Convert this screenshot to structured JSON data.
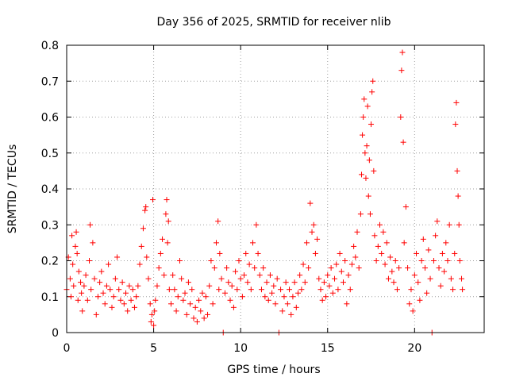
{
  "chart_data": {
    "type": "scatter",
    "title": "Day 356 of 2025, SRMTID for receiver nlib",
    "xlabel": "GPS time / hours",
    "ylabel": "SRMTID / TECUs",
    "xlim": [
      0,
      24
    ],
    "ylim": [
      0,
      0.8
    ],
    "xticks": [
      0,
      5,
      10,
      15,
      20
    ],
    "xtick_labels": [
      "0",
      "5",
      "10",
      "15",
      "20"
    ],
    "yticks": [
      0,
      0.1,
      0.2,
      0.3,
      0.4,
      0.5,
      0.6,
      0.7,
      0.8
    ],
    "ytick_labels": [
      "0",
      "0.1",
      "0.2",
      "0.3",
      "0.4",
      "0.5",
      "0.6",
      "0.7",
      "0.8"
    ],
    "grid": true,
    "legend": "none",
    "marker": "+",
    "color": "#ff0000",
    "series": [
      {
        "name": "SRMTID",
        "points": [
          [
            0.0,
            0.12
          ],
          [
            0.1,
            0.21
          ],
          [
            0.2,
            0.15
          ],
          [
            0.25,
            0.1
          ],
          [
            0.3,
            0.27
          ],
          [
            0.35,
            0.19
          ],
          [
            0.4,
            0.13
          ],
          [
            0.5,
            0.24
          ],
          [
            0.55,
            0.28
          ],
          [
            0.6,
            0.22
          ],
          [
            0.65,
            0.09
          ],
          [
            0.7,
            0.17
          ],
          [
            0.8,
            0.14
          ],
          [
            0.85,
            0.11
          ],
          [
            0.9,
            0.06
          ],
          [
            1.0,
            0.13
          ],
          [
            1.1,
            0.16
          ],
          [
            1.2,
            0.09
          ],
          [
            1.3,
            0.2
          ],
          [
            1.35,
            0.3
          ],
          [
            1.4,
            0.12
          ],
          [
            1.5,
            0.25
          ],
          [
            1.6,
            0.15
          ],
          [
            1.7,
            0.05
          ],
          [
            1.8,
            0.1
          ],
          [
            1.9,
            0.14
          ],
          [
            2.0,
            0.17
          ],
          [
            2.1,
            0.11
          ],
          [
            2.2,
            0.08
          ],
          [
            2.3,
            0.13
          ],
          [
            2.4,
            0.19
          ],
          [
            2.5,
            0.12
          ],
          [
            2.6,
            0.07
          ],
          [
            2.7,
            0.1
          ],
          [
            2.8,
            0.15
          ],
          [
            2.9,
            0.21
          ],
          [
            3.0,
            0.12
          ],
          [
            3.1,
            0.09
          ],
          [
            3.2,
            0.14
          ],
          [
            3.3,
            0.08
          ],
          [
            3.4,
            0.11
          ],
          [
            3.5,
            0.06
          ],
          [
            3.6,
            0.13
          ],
          [
            3.7,
            0.09
          ],
          [
            3.8,
            0.12
          ],
          [
            3.9,
            0.07
          ],
          [
            4.0,
            0.1
          ],
          [
            4.1,
            0.13
          ],
          [
            4.2,
            0.19
          ],
          [
            4.3,
            0.24
          ],
          [
            4.4,
            0.29
          ],
          [
            4.5,
            0.34
          ],
          [
            4.55,
            0.35
          ],
          [
            4.6,
            0.21
          ],
          [
            4.7,
            0.15
          ],
          [
            4.8,
            0.08
          ],
          [
            4.85,
            0.03
          ],
          [
            4.9,
            0.05
          ],
          [
            4.95,
            0.37
          ],
          [
            5.0,
            0.02
          ],
          [
            5.05,
            0.06
          ],
          [
            5.1,
            0.09
          ],
          [
            5.2,
            0.13
          ],
          [
            5.3,
            0.18
          ],
          [
            5.4,
            0.22
          ],
          [
            5.5,
            0.26
          ],
          [
            5.6,
            0.16
          ],
          [
            5.7,
            0.33
          ],
          [
            5.75,
            0.37
          ],
          [
            5.8,
            0.25
          ],
          [
            5.85,
            0.31
          ],
          [
            5.9,
            0.12
          ],
          [
            6.0,
            0.08
          ],
          [
            6.1,
            0.16
          ],
          [
            6.2,
            0.12
          ],
          [
            6.3,
            0.06
          ],
          [
            6.4,
            0.1
          ],
          [
            6.5,
            0.2
          ],
          [
            6.6,
            0.15
          ],
          [
            6.7,
            0.09
          ],
          [
            6.8,
            0.11
          ],
          [
            6.9,
            0.05
          ],
          [
            7.0,
            0.14
          ],
          [
            7.1,
            0.08
          ],
          [
            7.2,
            0.12
          ],
          [
            7.3,
            0.04
          ],
          [
            7.4,
            0.07
          ],
          [
            7.5,
            0.03
          ],
          [
            7.6,
            0.09
          ],
          [
            7.7,
            0.06
          ],
          [
            7.8,
            0.11
          ],
          [
            7.9,
            0.04
          ],
          [
            8.0,
            0.1
          ],
          [
            8.1,
            0.05
          ],
          [
            8.2,
            0.13
          ],
          [
            8.3,
            0.2
          ],
          [
            8.4,
            0.08
          ],
          [
            8.5,
            0.18
          ],
          [
            8.6,
            0.25
          ],
          [
            8.7,
            0.31
          ],
          [
            8.75,
            0.12
          ],
          [
            8.8,
            0.22
          ],
          [
            8.9,
            0.15
          ],
          [
            9.0,
            0.0
          ],
          [
            9.1,
            0.11
          ],
          [
            9.2,
            0.18
          ],
          [
            9.3,
            0.14
          ],
          [
            9.4,
            0.09
          ],
          [
            9.5,
            0.13
          ],
          [
            9.6,
            0.07
          ],
          [
            9.7,
            0.17
          ],
          [
            9.8,
            0.12
          ],
          [
            9.9,
            0.2
          ],
          [
            10.0,
            0.15
          ],
          [
            10.1,
            0.1
          ],
          [
            10.2,
            0.16
          ],
          [
            10.3,
            0.22
          ],
          [
            10.4,
            0.14
          ],
          [
            10.5,
            0.19
          ],
          [
            10.6,
            0.12
          ],
          [
            10.7,
            0.25
          ],
          [
            10.8,
            0.18
          ],
          [
            10.9,
            0.3
          ],
          [
            11.0,
            0.22
          ],
          [
            11.1,
            0.16
          ],
          [
            11.2,
            0.12
          ],
          [
            11.3,
            0.18
          ],
          [
            11.4,
            0.1
          ],
          [
            11.5,
            0.14
          ],
          [
            11.6,
            0.09
          ],
          [
            11.7,
            0.16
          ],
          [
            11.8,
            0.11
          ],
          [
            11.9,
            0.13
          ],
          [
            12.0,
            0.08
          ],
          [
            12.1,
            0.15
          ],
          [
            12.2,
            0.0
          ],
          [
            12.3,
            0.12
          ],
          [
            12.4,
            0.06
          ],
          [
            12.5,
            0.1
          ],
          [
            12.6,
            0.14
          ],
          [
            12.7,
            0.08
          ],
          [
            12.8,
            0.12
          ],
          [
            12.9,
            0.05
          ],
          [
            13.0,
            0.1
          ],
          [
            13.1,
            0.14
          ],
          [
            13.2,
            0.07
          ],
          [
            13.3,
            0.11
          ],
          [
            13.4,
            0.16
          ],
          [
            13.5,
            0.12
          ],
          [
            13.6,
            0.19
          ],
          [
            13.7,
            0.14
          ],
          [
            13.8,
            0.25
          ],
          [
            13.9,
            0.18
          ],
          [
            14.0,
            0.36
          ],
          [
            14.1,
            0.28
          ],
          [
            14.2,
            0.3
          ],
          [
            14.3,
            0.22
          ],
          [
            14.4,
            0.26
          ],
          [
            14.5,
            0.15
          ],
          [
            14.6,
            0.12
          ],
          [
            14.7,
            0.09
          ],
          [
            14.8,
            0.14
          ],
          [
            14.9,
            0.1
          ],
          [
            15.0,
            0.16
          ],
          [
            15.1,
            0.13
          ],
          [
            15.2,
            0.18
          ],
          [
            15.3,
            0.11
          ],
          [
            15.4,
            0.15
          ],
          [
            15.5,
            0.19
          ],
          [
            15.6,
            0.12
          ],
          [
            15.7,
            0.22
          ],
          [
            15.8,
            0.17
          ],
          [
            15.9,
            0.14
          ],
          [
            16.0,
            0.2
          ],
          [
            16.1,
            0.08
          ],
          [
            16.2,
            0.16
          ],
          [
            16.3,
            0.12
          ],
          [
            16.4,
            0.19
          ],
          [
            16.5,
            0.24
          ],
          [
            16.6,
            0.21
          ],
          [
            16.7,
            0.28
          ],
          [
            16.8,
            0.18
          ],
          [
            16.9,
            0.33
          ],
          [
            16.95,
            0.44
          ],
          [
            17.0,
            0.55
          ],
          [
            17.05,
            0.6
          ],
          [
            17.1,
            0.65
          ],
          [
            17.15,
            0.5
          ],
          [
            17.2,
            0.43
          ],
          [
            17.25,
            0.52
          ],
          [
            17.3,
            0.63
          ],
          [
            17.35,
            0.38
          ],
          [
            17.4,
            0.48
          ],
          [
            17.45,
            0.33
          ],
          [
            17.5,
            0.58
          ],
          [
            17.55,
            0.67
          ],
          [
            17.6,
            0.7
          ],
          [
            17.65,
            0.45
          ],
          [
            17.7,
            0.27
          ],
          [
            17.8,
            0.2
          ],
          [
            17.9,
            0.24
          ],
          [
            18.0,
            0.3
          ],
          [
            18.1,
            0.22
          ],
          [
            18.2,
            0.28
          ],
          [
            18.3,
            0.19
          ],
          [
            18.4,
            0.25
          ],
          [
            18.5,
            0.15
          ],
          [
            18.6,
            0.21
          ],
          [
            18.7,
            0.17
          ],
          [
            18.8,
            0.14
          ],
          [
            18.9,
            0.2
          ],
          [
            19.0,
            0.12
          ],
          [
            19.1,
            0.18
          ],
          [
            19.2,
            0.6
          ],
          [
            19.25,
            0.73
          ],
          [
            19.3,
            0.78
          ],
          [
            19.35,
            0.53
          ],
          [
            19.4,
            0.25
          ],
          [
            19.5,
            0.35
          ],
          [
            19.6,
            0.18
          ],
          [
            19.7,
            0.08
          ],
          [
            19.8,
            0.12
          ],
          [
            19.9,
            0.06
          ],
          [
            20.0,
            0.16
          ],
          [
            20.1,
            0.22
          ],
          [
            20.2,
            0.14
          ],
          [
            20.3,
            0.09
          ],
          [
            20.4,
            0.2
          ],
          [
            20.5,
            0.26
          ],
          [
            20.6,
            0.18
          ],
          [
            20.7,
            0.11
          ],
          [
            20.8,
            0.23
          ],
          [
            20.9,
            0.15
          ],
          [
            21.0,
            0.0
          ],
          [
            21.1,
            0.2
          ],
          [
            21.2,
            0.27
          ],
          [
            21.3,
            0.31
          ],
          [
            21.4,
            0.18
          ],
          [
            21.5,
            0.13
          ],
          [
            21.6,
            0.22
          ],
          [
            21.7,
            0.17
          ],
          [
            21.8,
            0.25
          ],
          [
            21.9,
            0.2
          ],
          [
            22.0,
            0.3
          ],
          [
            22.1,
            0.15
          ],
          [
            22.2,
            0.12
          ],
          [
            22.3,
            0.22
          ],
          [
            22.35,
            0.58
          ],
          [
            22.4,
            0.64
          ],
          [
            22.45,
            0.45
          ],
          [
            22.5,
            0.38
          ],
          [
            22.55,
            0.3
          ],
          [
            22.6,
            0.2
          ],
          [
            22.7,
            0.15
          ],
          [
            22.75,
            0.12
          ]
        ]
      }
    ]
  }
}
